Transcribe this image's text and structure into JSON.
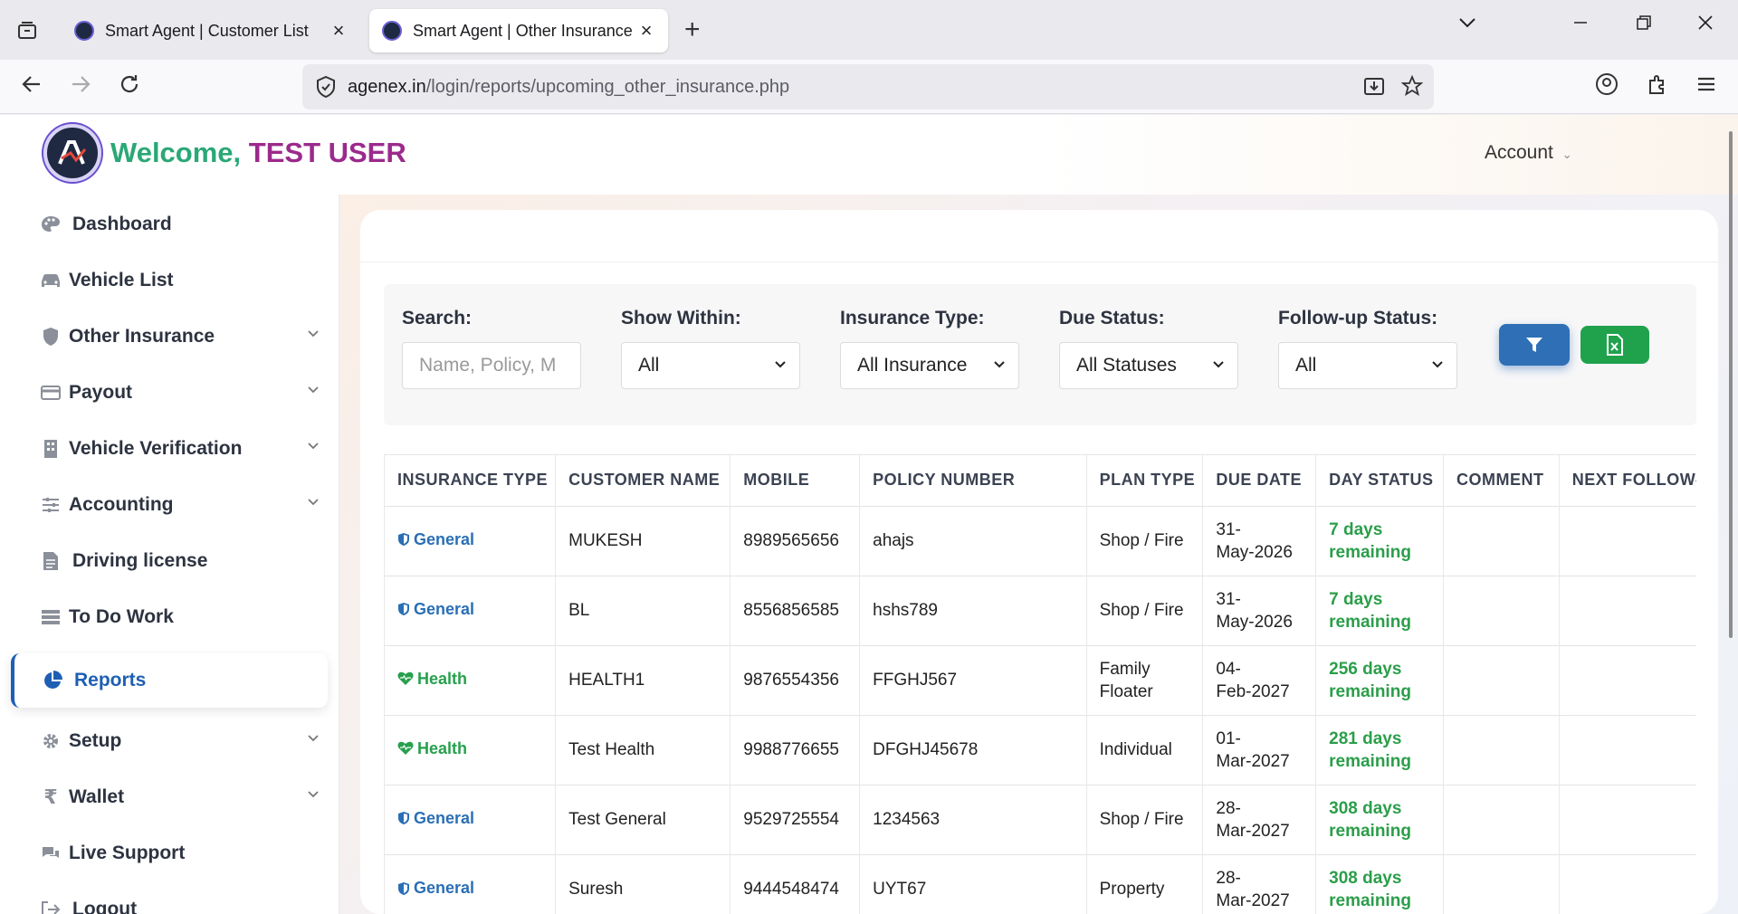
{
  "browser": {
    "tabs": [
      {
        "title": "Smart Agent | Customer List"
      },
      {
        "title": "Smart Agent | Other Insurance F"
      }
    ],
    "url_host": "agenex.in",
    "url_path": "/login/reports/upcoming_other_insurance.php"
  },
  "header": {
    "welcome": "Welcome,",
    "user": "TEST USER",
    "account": "Account"
  },
  "sidebar": {
    "items": [
      {
        "label": "Dashboard",
        "icon": "palette-icon"
      },
      {
        "label": "Vehicle List",
        "icon": "car-icon"
      },
      {
        "label": "Other Insurance",
        "icon": "shield-icon"
      },
      {
        "label": "Payout",
        "icon": "credit-card-icon"
      },
      {
        "label": "Vehicle Verification",
        "icon": "building-icon"
      },
      {
        "label": "Accounting",
        "icon": "sliders-icon"
      },
      {
        "label": "Driving license",
        "icon": "file-icon"
      },
      {
        "label": "To Do Work",
        "icon": "list-icon"
      },
      {
        "label": "Reports",
        "icon": "pie-chart-icon"
      },
      {
        "label": "Setup",
        "icon": "gear-icon"
      },
      {
        "label": "Wallet",
        "icon": "rupee-icon"
      },
      {
        "label": "Live Support",
        "icon": "chat-icon"
      },
      {
        "label": "Logout",
        "icon": "logout-icon"
      }
    ]
  },
  "filters": {
    "search_label": "Search:",
    "search_placeholder": "Name, Policy, M",
    "within_label": "Show Within:",
    "within_value": "All",
    "type_label": "Insurance Type:",
    "type_value": "All Insurance",
    "due_label": "Due Status:",
    "due_value": "All Statuses",
    "follow_label": "Follow-up Status:",
    "follow_value": "All"
  },
  "table": {
    "headers": [
      "INSURANCE TYPE",
      "CUSTOMER NAME",
      "MOBILE",
      "POLICY NUMBER",
      "PLAN TYPE",
      "DUE DATE",
      "DAY STATUS",
      "COMMENT",
      "NEXT FOLLOW-U"
    ],
    "rows": [
      {
        "type": "General",
        "name": "MUKESH",
        "mobile": "8989565656",
        "policy": "ahajs",
        "plan": "Shop / Fire",
        "due1": "31-",
        "due2": "May-2026",
        "day1": "7 days",
        "day2": "remaining"
      },
      {
        "type": "General",
        "name": "BL",
        "mobile": "8556856585",
        "policy": "hshs789",
        "plan": "Shop / Fire",
        "due1": "31-",
        "due2": "May-2026",
        "day1": "7 days",
        "day2": "remaining"
      },
      {
        "type": "Health",
        "name": "HEALTH1",
        "mobile": "9876554356",
        "policy": "FFGHJ567",
        "plan1": "Family",
        "plan2": "Floater",
        "due1": "04-",
        "due2": "Feb-2027",
        "day1": "256 days",
        "day2": "remaining"
      },
      {
        "type": "Health",
        "name": "Test Health",
        "mobile": "9988776655",
        "policy": "DFGHJ45678",
        "plan": "Individual",
        "due1": "01-",
        "due2": "Mar-2027",
        "day1": "281 days",
        "day2": "remaining"
      },
      {
        "type": "General",
        "name": "Test General",
        "mobile": "9529725554",
        "policy": "1234563",
        "plan": "Shop / Fire",
        "due1": "28-",
        "due2": "Mar-2027",
        "day1": "308 days",
        "day2": "remaining"
      },
      {
        "type": "General",
        "name": "Suresh",
        "mobile": "9444548474",
        "policy": "UYT67",
        "plan": "Property",
        "due1": "28-",
        "due2": "Mar-2027",
        "day1": "308 days",
        "day2": "remaining"
      }
    ]
  },
  "colors": {
    "general": "#2a6fb5",
    "health": "#27a04d",
    "accent": "#1e5fb4",
    "filter_button": "#2e6fb5",
    "excel_button": "#20a24d"
  }
}
